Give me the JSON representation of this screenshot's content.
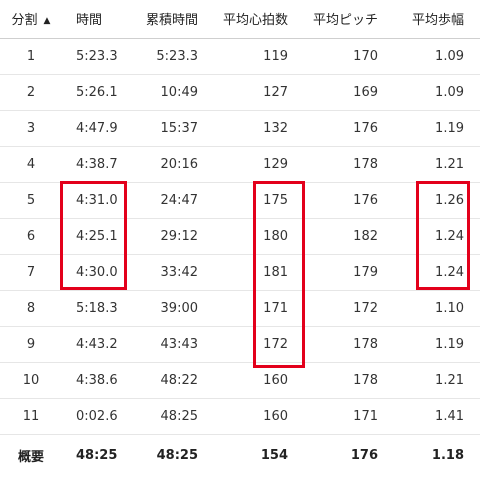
{
  "table": {
    "headers": {
      "split": "分割",
      "time": "時間",
      "cumulative": "累積時間",
      "avg_hr": "平均心拍数",
      "avg_cadence": "平均ピッチ",
      "avg_stride": "平均歩幅"
    },
    "sort_icon": "▲",
    "rows": [
      {
        "split": "1",
        "time": "5:23.3",
        "cumulative": "5:23.3",
        "avg_hr": "119",
        "avg_cadence": "170",
        "avg_stride": "1.09"
      },
      {
        "split": "2",
        "time": "5:26.1",
        "cumulative": "10:49",
        "avg_hr": "127",
        "avg_cadence": "169",
        "avg_stride": "1.09"
      },
      {
        "split": "3",
        "time": "4:47.9",
        "cumulative": "15:37",
        "avg_hr": "132",
        "avg_cadence": "176",
        "avg_stride": "1.19"
      },
      {
        "split": "4",
        "time": "4:38.7",
        "cumulative": "20:16",
        "avg_hr": "129",
        "avg_cadence": "178",
        "avg_stride": "1.21"
      },
      {
        "split": "5",
        "time": "4:31.0",
        "cumulative": "24:47",
        "avg_hr": "175",
        "avg_cadence": "176",
        "avg_stride": "1.26"
      },
      {
        "split": "6",
        "time": "4:25.1",
        "cumulative": "29:12",
        "avg_hr": "180",
        "avg_cadence": "182",
        "avg_stride": "1.24"
      },
      {
        "split": "7",
        "time": "4:30.0",
        "cumulative": "33:42",
        "avg_hr": "181",
        "avg_cadence": "179",
        "avg_stride": "1.24"
      },
      {
        "split": "8",
        "time": "5:18.3",
        "cumulative": "39:00",
        "avg_hr": "171",
        "avg_cadence": "172",
        "avg_stride": "1.10"
      },
      {
        "split": "9",
        "time": "4:43.2",
        "cumulative": "43:43",
        "avg_hr": "172",
        "avg_cadence": "178",
        "avg_stride": "1.19"
      },
      {
        "split": "10",
        "time": "4:38.6",
        "cumulative": "48:22",
        "avg_hr": "160",
        "avg_cadence": "178",
        "avg_stride": "1.21"
      },
      {
        "split": "11",
        "time": "0:02.6",
        "cumulative": "48:25",
        "avg_hr": "160",
        "avg_cadence": "171",
        "avg_stride": "1.41"
      }
    ],
    "summary": {
      "split": "概要",
      "time": "48:25",
      "cumulative": "48:25",
      "avg_hr": "154",
      "avg_cadence": "176",
      "avg_stride": "1.18"
    }
  },
  "colors": {
    "highlight": "#e3001b"
  }
}
